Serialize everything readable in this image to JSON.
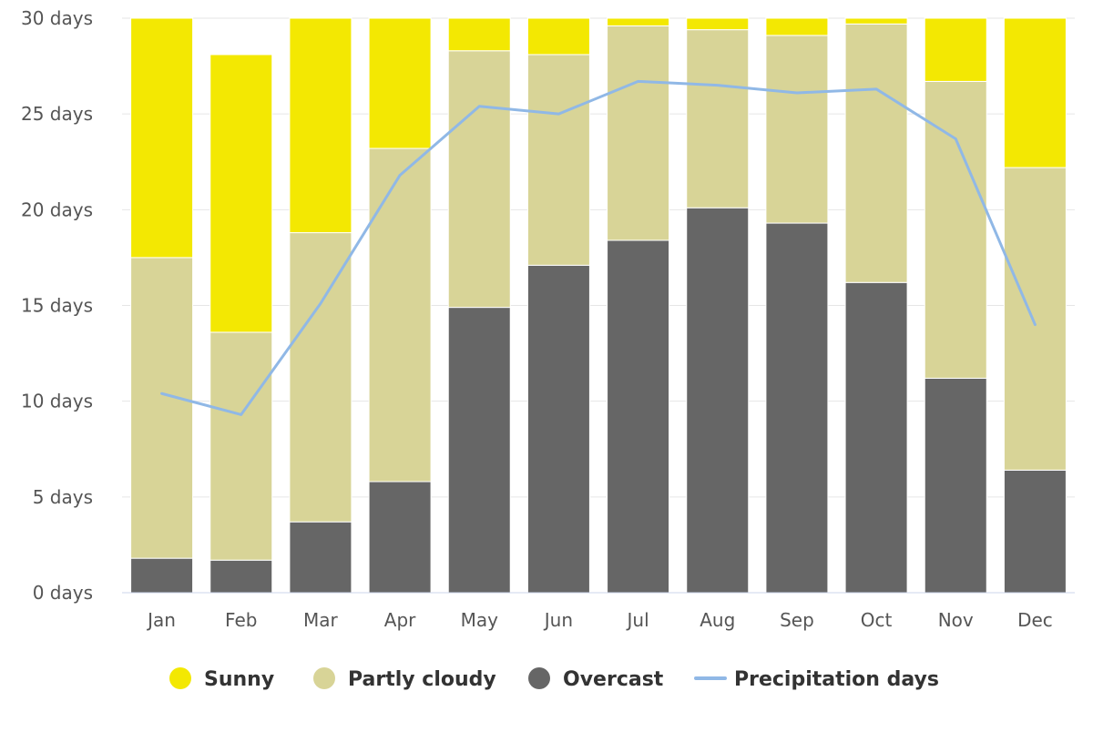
{
  "chart_data": {
    "type": "bar",
    "stacked": true,
    "categories": [
      "Jan",
      "Feb",
      "Mar",
      "Apr",
      "May",
      "Jun",
      "Jul",
      "Aug",
      "Sep",
      "Oct",
      "Nov",
      "Dec"
    ],
    "series": [
      {
        "name": "Overcast",
        "color": "#666666",
        "values": [
          1.8,
          1.7,
          3.7,
          5.8,
          14.9,
          17.1,
          18.4,
          20.1,
          19.3,
          16.2,
          11.2,
          6.4
        ]
      },
      {
        "name": "Partly cloudy",
        "color": "#d8d497",
        "values": [
          15.7,
          11.9,
          15.1,
          17.4,
          13.4,
          11.0,
          11.2,
          9.3,
          9.8,
          13.5,
          15.5,
          15.8
        ]
      },
      {
        "name": "Sunny",
        "color": "#f3e802",
        "values": [
          12.5,
          14.5,
          11.2,
          6.8,
          1.7,
          1.9,
          0.4,
          0.6,
          0.9,
          0.3,
          3.3,
          7.8
        ]
      }
    ],
    "line_series": {
      "name": "Precipitation days",
      "color": "#90b8e6",
      "values": [
        10.4,
        9.3,
        15.1,
        21.8,
        25.4,
        25.0,
        26.7,
        26.5,
        26.1,
        26.3,
        23.7,
        14.0
      ]
    },
    "ylim": [
      0,
      30
    ],
    "y_ticks": [
      0,
      5,
      10,
      15,
      20,
      25,
      30
    ],
    "y_tick_suffix": " days",
    "grid": true,
    "legend_position": "bottom",
    "legend_order": [
      "Sunny",
      "Partly cloudy",
      "Overcast",
      "Precipitation days"
    ]
  }
}
